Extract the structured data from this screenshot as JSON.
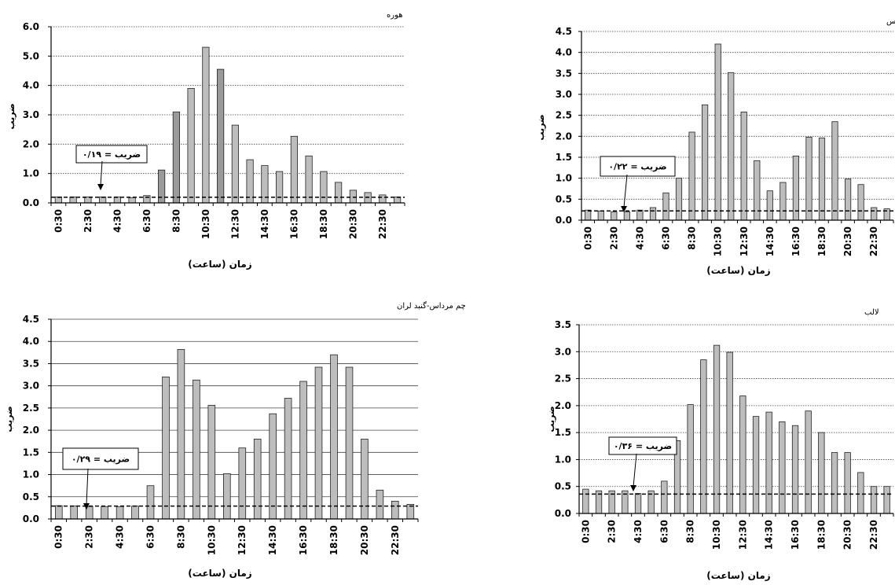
{
  "chart_data": [
    {
      "type": "bar",
      "title": "هوره",
      "ylabel": "ضریب",
      "xlabel": "زمان (ساعت)",
      "ylim": [
        0,
        6
      ],
      "yticks": [
        "0.0",
        "1.0",
        "2.0",
        "3.0",
        "4.0",
        "5.0",
        "6.0"
      ],
      "ytick_values": [
        0,
        1,
        2,
        3,
        4,
        5,
        6
      ],
      "xtick_labels": [
        "0:30",
        "2:30",
        "4:30",
        "6:30",
        "8:30",
        "10:30",
        "12:30",
        "14:30",
        "16:30",
        "18:30",
        "20:30",
        "22:30"
      ],
      "values": [
        0.2,
        0.2,
        0.2,
        0.2,
        0.2,
        0.18,
        0.25,
        1.12,
        3.1,
        3.9,
        5.3,
        4.55,
        2.65,
        1.47,
        1.27,
        1.07,
        2.27,
        1.6,
        1.07,
        0.7,
        0.43,
        0.35,
        0.27,
        0.2
      ],
      "bar_colors": [
        "#bdbdbd",
        "#bdbdbd",
        "#bdbdbd",
        "#bdbdbd",
        "#bdbdbd",
        "#bdbdbd",
        "#bdbdbd",
        "#9a9a9a",
        "#9a9a9a",
        "#bdbdbd",
        "#bdbdbd",
        "#9a9a9a",
        "#bdbdbd",
        "#bdbdbd",
        "#bdbdbd",
        "#bdbdbd",
        "#bdbdbd",
        "#bdbdbd",
        "#bdbdbd",
        "#bdbdbd",
        "#bdbdbd",
        "#bdbdbd",
        "#bdbdbd",
        "#bdbdbd"
      ],
      "threshold": 0.19,
      "annotation": "ضریب = ۰/۱۹",
      "grid": "horizontal dotted"
    },
    {
      "type": "bar",
      "title": "مله ابوالعباس",
      "ylabel": "ضریب",
      "xlabel": "زمان (ساعت)",
      "ylim": [
        0,
        4.5
      ],
      "yticks": [
        "0.0",
        "0.5",
        "1.0",
        "1.5",
        "2.0",
        "2.5",
        "3.0",
        "3.5",
        "4.0",
        "4.5"
      ],
      "ytick_values": [
        0,
        0.5,
        1,
        1.5,
        2,
        2.5,
        3,
        3.5,
        4,
        4.5
      ],
      "xtick_labels": [
        "0:30",
        "2:30",
        "4:30",
        "6:30",
        "8:30",
        "10:30",
        "12:30",
        "14:30",
        "16:30",
        "18:30",
        "20:30",
        "22:30"
      ],
      "values": [
        0.24,
        0.22,
        0.2,
        0.2,
        0.24,
        0.3,
        0.65,
        1.0,
        2.1,
        2.75,
        4.2,
        3.52,
        2.58,
        1.42,
        0.7,
        0.9,
        1.53,
        1.98,
        1.96,
        2.35,
        0.98,
        0.85,
        0.3,
        0.27
      ],
      "bar_colors": [
        "#bdbdbd",
        "#bdbdbd",
        "#bdbdbd",
        "#bdbdbd",
        "#bdbdbd",
        "#bdbdbd",
        "#bdbdbd",
        "#bdbdbd",
        "#bdbdbd",
        "#bdbdbd",
        "#bdbdbd",
        "#bdbdbd",
        "#bdbdbd",
        "#bdbdbd",
        "#bdbdbd",
        "#bdbdbd",
        "#bdbdbd",
        "#bdbdbd",
        "#bdbdbd",
        "#bdbdbd",
        "#bdbdbd",
        "#bdbdbd",
        "#bdbdbd",
        "#bdbdbd"
      ],
      "threshold": 0.22,
      "annotation": "ضریب = ۰/۲۲",
      "grid": "horizontal dotted"
    },
    {
      "type": "bar",
      "title": "چم مرداس-گنبد لران",
      "ylabel": "ضریب",
      "xlabel": "زمان (ساعت)",
      "ylim": [
        0,
        4.5
      ],
      "yticks": [
        "0.0",
        "0.5",
        "1.0",
        "1.5",
        "2.0",
        "2.5",
        "3.0",
        "3.5",
        "4.0",
        "4.5"
      ],
      "ytick_values": [
        0,
        0.5,
        1,
        1.5,
        2,
        2.5,
        3,
        3.5,
        4,
        4.5
      ],
      "xtick_labels": [
        "0:30",
        "2:30",
        "4:30",
        "6:30",
        "8:30",
        "10:30",
        "12:30",
        "14:30",
        "16:30",
        "18:30",
        "20:30",
        "22:30"
      ],
      "values": [
        0.3,
        0.29,
        0.28,
        0.28,
        0.28,
        0.29,
        0.75,
        3.2,
        3.82,
        3.13,
        2.56,
        1.02,
        1.6,
        1.8,
        2.37,
        2.72,
        3.1,
        3.42,
        3.7,
        3.42,
        1.8,
        0.65,
        0.4,
        0.33
      ],
      "bar_colors": [
        "#bdbdbd",
        "#bdbdbd",
        "#bdbdbd",
        "#bdbdbd",
        "#bdbdbd",
        "#bdbdbd",
        "#bdbdbd",
        "#bdbdbd",
        "#bdbdbd",
        "#bdbdbd",
        "#bdbdbd",
        "#bdbdbd",
        "#bdbdbd",
        "#bdbdbd",
        "#bdbdbd",
        "#bdbdbd",
        "#bdbdbd",
        "#bdbdbd",
        "#bdbdbd",
        "#bdbdbd",
        "#bdbdbd",
        "#bdbdbd",
        "#bdbdbd",
        "#bdbdbd"
      ],
      "threshold": 0.29,
      "annotation": "ضریب = ۰/۲۹",
      "grid": "horizontal solid"
    },
    {
      "type": "bar",
      "title": "لالب",
      "ylabel": "ضریب",
      "xlabel": "زمان (ساعت)",
      "ylim": [
        0,
        3.5
      ],
      "yticks": [
        "0.0",
        "0.5",
        "1.0",
        "1.5",
        "2.0",
        "2.5",
        "3.0",
        "3.5"
      ],
      "ytick_values": [
        0,
        0.5,
        1,
        1.5,
        2,
        2.5,
        3,
        3.5
      ],
      "xtick_labels": [
        "0:30",
        "2:30",
        "4:30",
        "6:30",
        "8:30",
        "10:30",
        "12:30",
        "14:30",
        "16:30",
        "18:30",
        "20:30",
        "22:30"
      ],
      "values": [
        0.45,
        0.42,
        0.42,
        0.42,
        0.37,
        0.42,
        0.6,
        1.35,
        2.02,
        2.85,
        3.12,
        2.99,
        2.18,
        1.8,
        1.88,
        1.7,
        1.63,
        1.9,
        1.5,
        1.13,
        1.13,
        0.76,
        0.5,
        0.5
      ],
      "bar_colors": [
        "#bdbdbd",
        "#bdbdbd",
        "#bdbdbd",
        "#bdbdbd",
        "#bdbdbd",
        "#bdbdbd",
        "#bdbdbd",
        "#bdbdbd",
        "#bdbdbd",
        "#bdbdbd",
        "#bdbdbd",
        "#bdbdbd",
        "#bdbdbd",
        "#bdbdbd",
        "#bdbdbd",
        "#bdbdbd",
        "#bdbdbd",
        "#bdbdbd",
        "#bdbdbd",
        "#bdbdbd",
        "#bdbdbd",
        "#bdbdbd",
        "#bdbdbd",
        "#bdbdbd"
      ],
      "threshold": 0.36,
      "annotation": "ضریب = ۰/۳۶",
      "grid": "horizontal dotted"
    }
  ]
}
